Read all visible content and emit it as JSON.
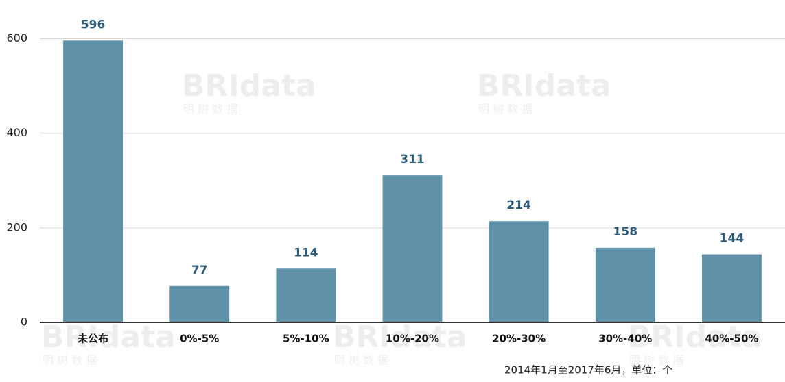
{
  "chart_data": {
    "type": "bar",
    "categories": [
      "未公布",
      "0%-5%",
      "5%-10%",
      "10%-20%",
      "20%-30%",
      "30%-40%",
      "40%-50%"
    ],
    "values": [
      596,
      77,
      114,
      311,
      214,
      158,
      144
    ],
    "color": "#5e90a8",
    "ylim": [
      0,
      650
    ],
    "yticks": [
      0,
      200,
      400,
      600
    ],
    "grid": true,
    "note": "2014年1月至2017年6月，单位：个",
    "watermark": "BRIdata",
    "watermark_sub": "明 树 数 据"
  }
}
